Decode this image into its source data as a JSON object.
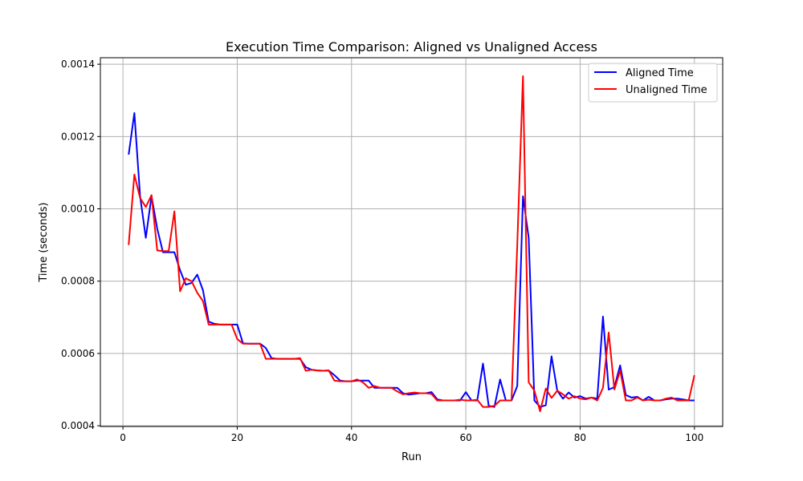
{
  "chart_data": {
    "type": "line",
    "title": "Execution Time Comparison: Aligned vs Unaligned Access",
    "xlabel": "Run",
    "ylabel": "Time (seconds)",
    "xlim": [
      -3.95,
      104.95
    ],
    "ylim": [
      0.000398,
      0.001418
    ],
    "x_ticks": [
      0,
      20,
      40,
      60,
      80,
      100
    ],
    "x_tick_labels": [
      "0",
      "20",
      "40",
      "60",
      "80",
      "100"
    ],
    "y_ticks": [
      0.0004,
      0.0006,
      0.0008,
      0.001,
      0.0012,
      0.0014
    ],
    "y_tick_labels": [
      "0.0004",
      "0.0006",
      "0.0008",
      "0.0010",
      "0.0012",
      "0.0014"
    ],
    "grid": true,
    "legend_position": "top-right",
    "x": [
      1,
      2,
      3,
      4,
      5,
      6,
      7,
      8,
      9,
      10,
      11,
      12,
      13,
      14,
      15,
      16,
      17,
      18,
      19,
      20,
      21,
      22,
      23,
      24,
      25,
      26,
      27,
      28,
      29,
      30,
      31,
      32,
      33,
      34,
      35,
      36,
      37,
      38,
      39,
      40,
      41,
      42,
      43,
      44,
      45,
      46,
      47,
      48,
      49,
      50,
      51,
      52,
      53,
      54,
      55,
      56,
      57,
      58,
      59,
      60,
      61,
      62,
      63,
      64,
      65,
      66,
      67,
      68,
      69,
      70,
      71,
      72,
      73,
      74,
      75,
      76,
      77,
      78,
      79,
      80,
      81,
      82,
      83,
      84,
      85,
      86,
      87,
      88,
      89,
      90,
      91,
      92,
      93,
      94,
      95,
      96,
      97,
      98,
      99,
      100
    ],
    "series": [
      {
        "name": "Aligned Time",
        "color": "#0000ff",
        "values": [
          0.00115,
          0.001265,
          0.001035,
          0.00092,
          0.001035,
          0.000945,
          0.00088,
          0.00088,
          0.00088,
          0.00083,
          0.00079,
          0.000795,
          0.000818,
          0.000775,
          0.000688,
          0.000682,
          0.00068,
          0.00068,
          0.00068,
          0.00068,
          0.000628,
          0.000627,
          0.000627,
          0.000627,
          0.000615,
          0.000587,
          0.000585,
          0.000585,
          0.000585,
          0.000585,
          0.000585,
          0.000562,
          0.000555,
          0.000553,
          0.000552,
          0.000553,
          0.00054,
          0.000525,
          0.000523,
          0.000523,
          0.000525,
          0.000525,
          0.000525,
          0.000505,
          0.000505,
          0.000505,
          0.000505,
          0.000505,
          0.00049,
          0.000486,
          0.000488,
          0.00049,
          0.00049,
          0.000493,
          0.000473,
          0.00047,
          0.00047,
          0.00047,
          0.00047,
          0.000493,
          0.00047,
          0.00047,
          0.000572,
          0.000455,
          0.000452,
          0.000528,
          0.00047,
          0.00047,
          0.00051,
          0.001035,
          0.00092,
          0.00047,
          0.000452,
          0.000457,
          0.000592,
          0.000497,
          0.000475,
          0.000492,
          0.000478,
          0.000482,
          0.000475,
          0.000478,
          0.000475,
          0.000702,
          0.0005,
          0.000507,
          0.000567,
          0.000485,
          0.000478,
          0.00048,
          0.00047,
          0.00048,
          0.00047,
          0.00047,
          0.000473,
          0.000475,
          0.000475,
          0.000473,
          0.00047,
          0.00047
        ]
      },
      {
        "name": "Unaligned Time",
        "color": "#ff0000",
        "values": [
          0.0009,
          0.001095,
          0.00103,
          0.001005,
          0.001038,
          0.000885,
          0.000883,
          0.000883,
          0.000993,
          0.000772,
          0.000808,
          0.0008,
          0.000768,
          0.000745,
          0.00068,
          0.00068,
          0.00068,
          0.00068,
          0.00068,
          0.00064,
          0.000627,
          0.000627,
          0.000627,
          0.000627,
          0.000585,
          0.000585,
          0.000585,
          0.000585,
          0.000585,
          0.000585,
          0.000587,
          0.000552,
          0.000555,
          0.000553,
          0.000552,
          0.000553,
          0.000525,
          0.000523,
          0.000523,
          0.000523,
          0.000528,
          0.00052,
          0.000505,
          0.00051,
          0.000505,
          0.000505,
          0.000505,
          0.000495,
          0.000487,
          0.00049,
          0.000492,
          0.00049,
          0.00049,
          0.000488,
          0.00047,
          0.00047,
          0.00047,
          0.00047,
          0.000472,
          0.00047,
          0.00047,
          0.000472,
          0.000452,
          0.000452,
          0.000455,
          0.00047,
          0.00047,
          0.00047,
          0.0009,
          0.001367,
          0.00052,
          0.000497,
          0.00044,
          0.000503,
          0.000477,
          0.000497,
          0.000487,
          0.000475,
          0.000482,
          0.000475,
          0.000473,
          0.000478,
          0.00047,
          0.000505,
          0.000658,
          0.0005,
          0.000553,
          0.00047,
          0.00047,
          0.000478,
          0.00047,
          0.000472,
          0.00047,
          0.00047,
          0.000475,
          0.000478,
          0.00047,
          0.00047,
          0.00047,
          0.00054
        ]
      }
    ]
  }
}
